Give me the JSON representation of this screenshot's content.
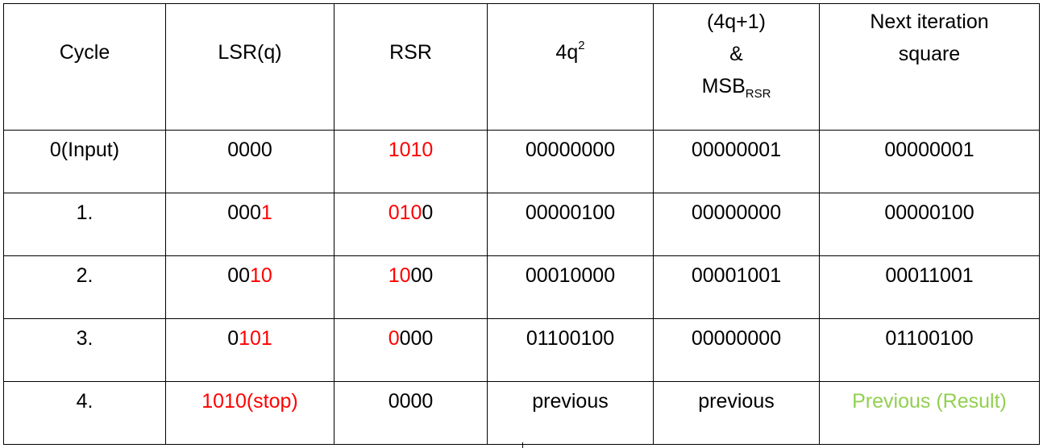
{
  "table": {
    "headers": {
      "cycle": "Cycle",
      "lsr": "LSR(q)",
      "rsr": "RSR",
      "four_q_base": "4q",
      "four_q_sup": "2",
      "mix_line1": "(4q+1)",
      "mix_line2": "&",
      "mix_msb": "MSB",
      "mix_sub": "RSR",
      "next_line1": "Next iteration",
      "next_line2": "square"
    },
    "rows": [
      {
        "cycle": "0(Input)",
        "lsr_black": "0000",
        "lsr_red": "",
        "rsr_red": "1010",
        "rsr_black": "",
        "four_q_sq": "00000000",
        "mix": "00000001",
        "next": "00000001"
      },
      {
        "cycle": "1.",
        "lsr_black": "000",
        "lsr_red": "1",
        "rsr_red": "010",
        "rsr_black": "0",
        "four_q_sq": "00000100",
        "mix": "00000000",
        "next": "00000100"
      },
      {
        "cycle": "2.",
        "lsr_black": "00",
        "lsr_red": "10",
        "rsr_red": "10",
        "rsr_black": "00",
        "four_q_sq": "00010000",
        "mix": "00001001",
        "next": "00011001"
      },
      {
        "cycle": "3.",
        "lsr_black": "0",
        "lsr_red": "101",
        "rsr_red": "0",
        "rsr_black": "000",
        "four_q_sq": "01100100",
        "mix": "00000000",
        "next": "01100100"
      },
      {
        "cycle": "4.",
        "lsr_black": "",
        "lsr_red": "1010(stop)",
        "rsr_red": "",
        "rsr_black": "0000",
        "four_q_sq": "previous",
        "mix": "previous",
        "next": "Previous (Result)"
      }
    ]
  },
  "colors": {
    "highlight_red": "#ff0000",
    "result_green": "#92d050",
    "border": "#000000"
  }
}
